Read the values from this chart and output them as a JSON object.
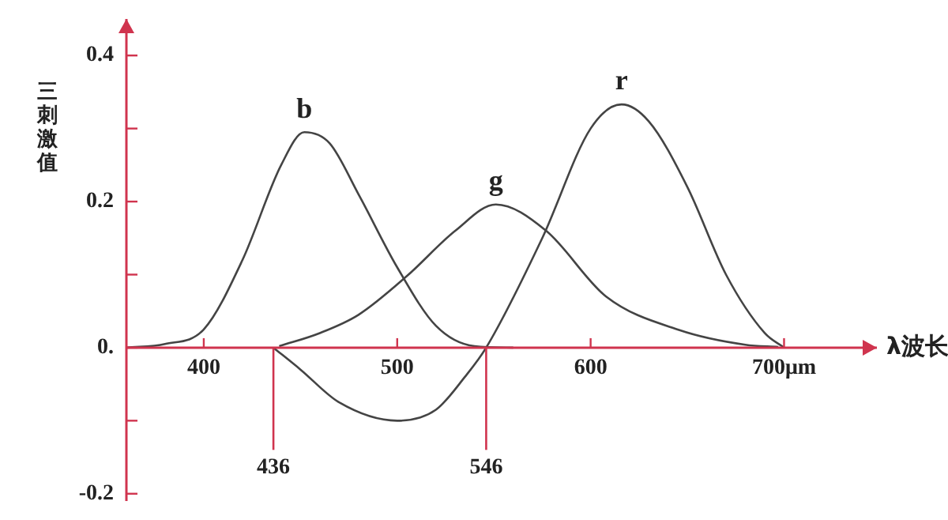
{
  "chart_data": {
    "type": "line",
    "xlabel": "λ波长",
    "ylabel": "三刺激值",
    "xlim": [
      360,
      748
    ],
    "ylim": [
      -0.21,
      0.45
    ],
    "xticks": [
      400,
      500,
      600,
      {
        "value": 700,
        "label": "700μm"
      }
    ],
    "yticks": [
      {
        "value": -0.2,
        "label": "-0.2"
      },
      {
        "value": -0.1,
        "label": null
      },
      {
        "value": 0,
        "label": "0."
      },
      {
        "value": 0.1,
        "label": null
      },
      0.2,
      {
        "value": 0.3,
        "label": null
      },
      0.4
    ],
    "legend": false,
    "grid": false,
    "marker": "none",
    "line_style": "solid",
    "ref_lines": [
      {
        "axis": "x",
        "value": 436,
        "label": "436",
        "color": "#d0344e"
      },
      {
        "axis": "x",
        "value": 546,
        "label": "546",
        "color": "#d0344e"
      }
    ],
    "series": [
      {
        "name": "b",
        "color": "#444444",
        "x": [
          360,
          380,
          400,
          420,
          440,
          452,
          465,
          480,
          500,
          520,
          540,
          560
        ],
        "values": [
          0,
          0.005,
          0.025,
          0.12,
          0.25,
          0.295,
          0.28,
          0.21,
          0.11,
          0.03,
          0.002,
          0
        ]
      },
      {
        "name": "g",
        "color": "#444444",
        "x": [
          439,
          460,
          480,
          505,
          530,
          551,
          577,
          608,
          646,
          680,
          697
        ],
        "values": [
          0.002,
          0.02,
          0.045,
          0.098,
          0.16,
          0.196,
          0.16,
          0.07,
          0.024,
          0.004,
          0.001
        ]
      },
      {
        "name": "r",
        "color": "#444444",
        "x": [
          436,
          450,
          470,
          500,
          520,
          535,
          546,
          575,
          600,
          616,
          630,
          650,
          670,
          690,
          700
        ],
        "values": [
          0,
          -0.03,
          -0.075,
          -0.1,
          -0.085,
          -0.04,
          0,
          0.15,
          0.3,
          0.333,
          0.31,
          0.22,
          0.1,
          0.02,
          0
        ]
      }
    ]
  }
}
